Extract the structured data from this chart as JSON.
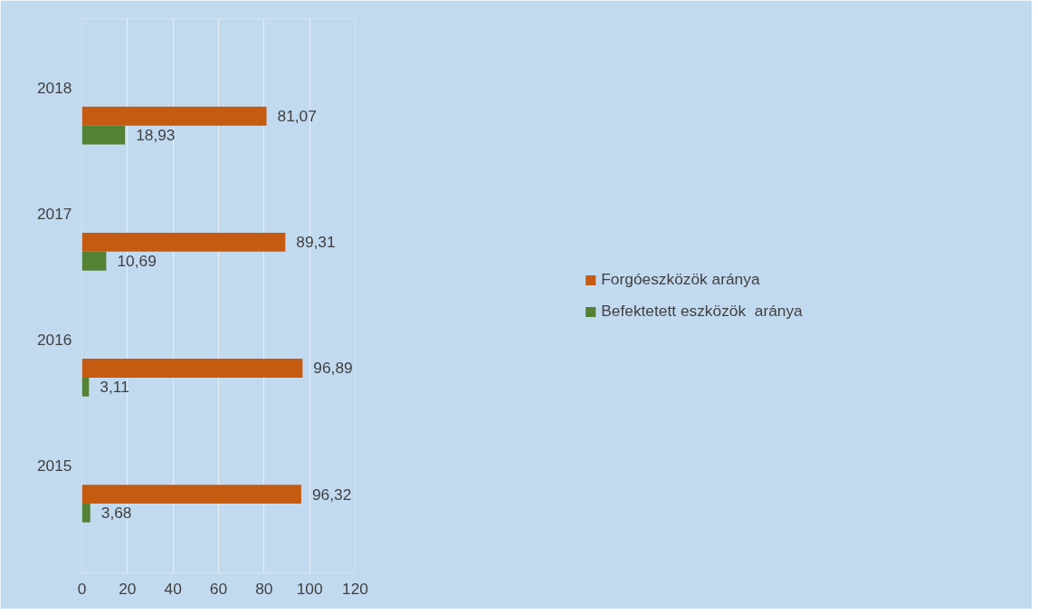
{
  "chart_data": {
    "type": "bar",
    "orientation": "horizontal",
    "categories": [
      "2018",
      "2017",
      "2016",
      "2015"
    ],
    "series": [
      {
        "name": "Forgóeszközök aránya",
        "color": "#c55a11",
        "values": [
          81.07,
          89.31,
          96.89,
          96.32
        ],
        "value_labels": [
          "81,07",
          "89,31",
          "96,89",
          "96,32"
        ]
      },
      {
        "name": "Befektetett eszközök  aránya",
        "color": "#548235",
        "values": [
          18.93,
          10.69,
          3.11,
          3.68
        ],
        "value_labels": [
          "18,93",
          "10,69",
          "3,11",
          "3,68"
        ]
      }
    ],
    "xlim": [
      0,
      120
    ],
    "xticks": [
      0,
      20,
      40,
      60,
      80,
      100,
      120
    ],
    "grid": "x",
    "legend": "right"
  }
}
